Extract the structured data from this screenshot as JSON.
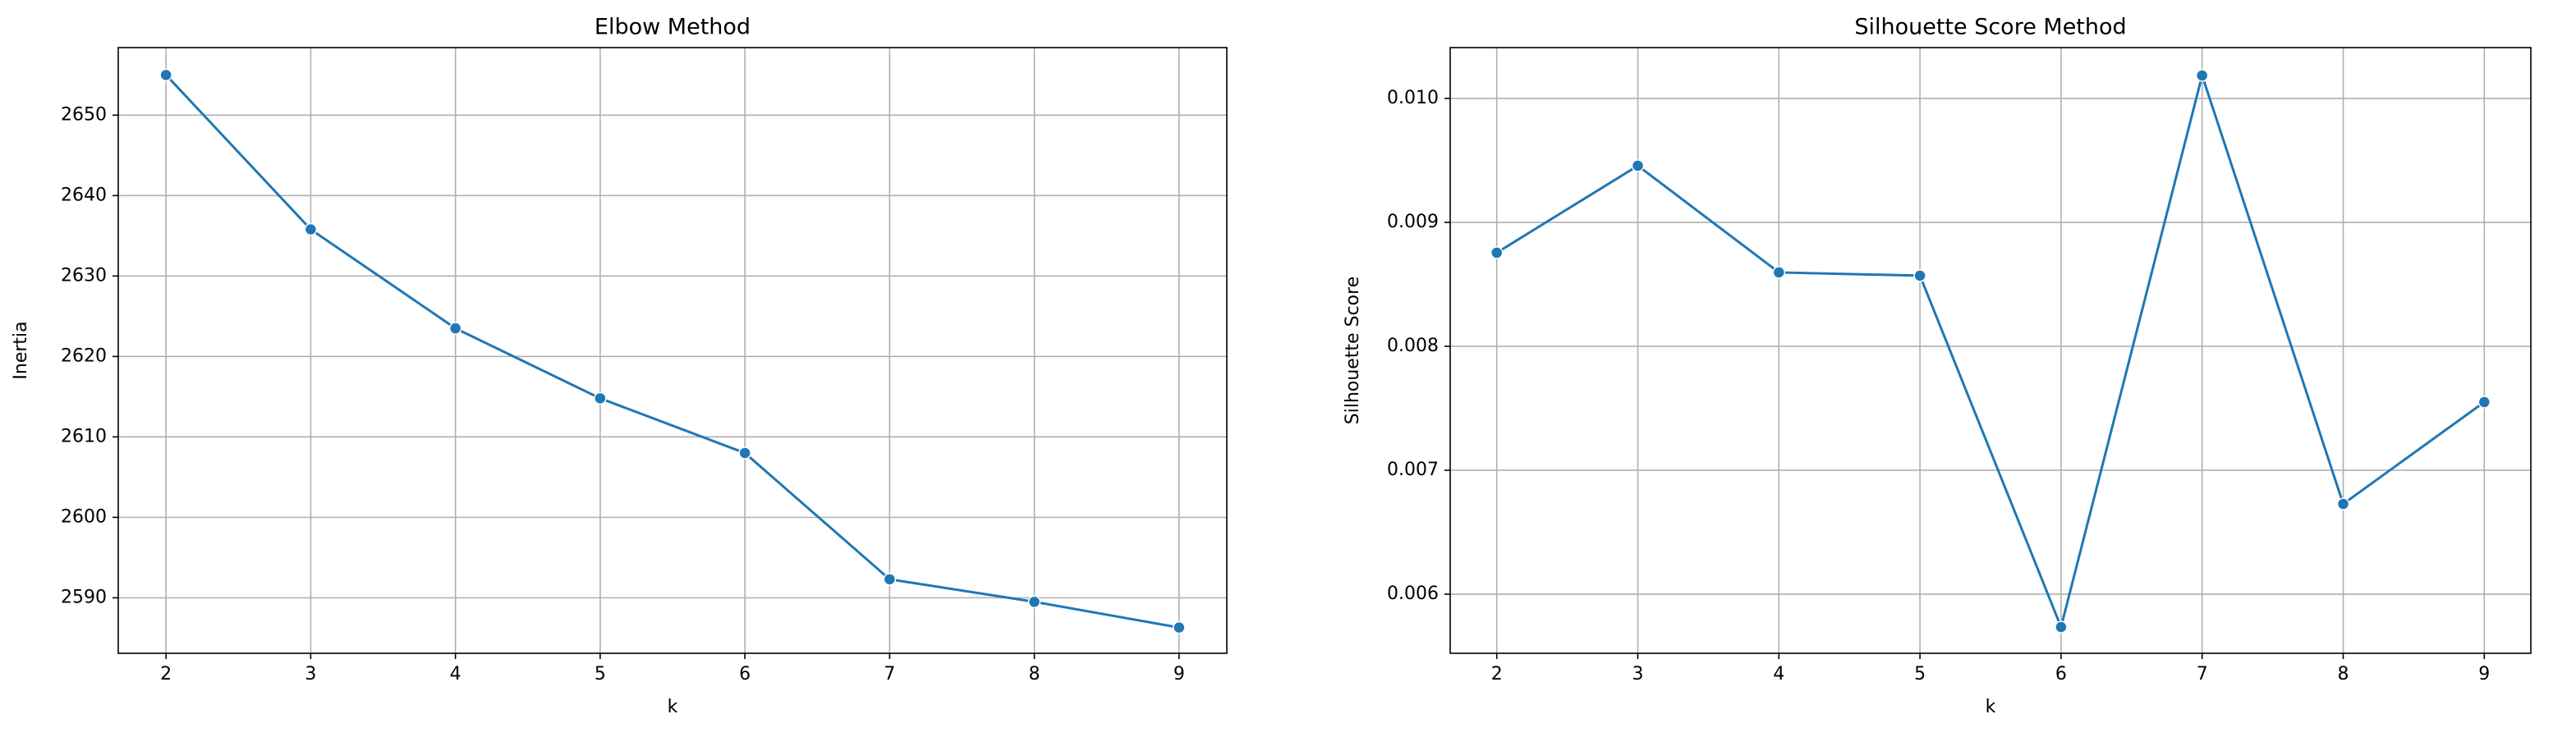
{
  "chart_data": [
    {
      "type": "line",
      "title": "Elbow Method",
      "xlabel": "k",
      "ylabel": "Inertia",
      "x": [
        2,
        3,
        4,
        5,
        6,
        7,
        8,
        9
      ],
      "series": [
        {
          "color": "#1f77b4",
          "values": [
            2655,
            2635.8,
            2623.5,
            2614.8,
            2608,
            2592.3,
            2589.5,
            2586.3
          ]
        }
      ],
      "xlim": [
        1.67,
        9.33
      ],
      "xticks": [
        2,
        3,
        4,
        5,
        6,
        7,
        8,
        9
      ],
      "ylim": [
        2583.1,
        2658.4
      ],
      "yticks": [
        2590,
        2600,
        2610,
        2620,
        2630,
        2640,
        2650
      ],
      "grid": true
    },
    {
      "type": "line",
      "title": "Silhouette Score Method",
      "xlabel": "k",
      "ylabel": "Silhouette Score",
      "x": [
        2,
        3,
        4,
        5,
        6,
        7,
        8,
        9
      ],
      "series": [
        {
          "color": "#1f77b4",
          "values": [
            0.008755,
            0.009457,
            0.008596,
            0.00857,
            0.005735,
            0.010185,
            0.006728,
            0.00755
          ]
        }
      ],
      "xlim": [
        1.67,
        9.33
      ],
      "xticks": [
        2,
        3,
        4,
        5,
        6,
        7,
        8,
        9
      ],
      "ylim": [
        0.005523,
        0.01041
      ],
      "yticks": [
        0.006,
        0.007,
        0.008,
        0.009,
        {
          "value": 0.01,
          "label": "0.010"
        }
      ],
      "grid": true
    }
  ]
}
